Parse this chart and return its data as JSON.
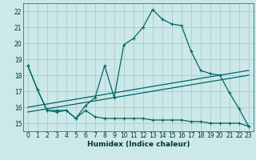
{
  "xlabel": "Humidex (Indice chaleur)",
  "background_color": "#cce8e8",
  "grid_color": "#aacccc",
  "line_color": "#006666",
  "xlim": [
    -0.5,
    23.5
  ],
  "ylim": [
    14.5,
    22.5
  ],
  "xticks": [
    0,
    1,
    2,
    3,
    4,
    5,
    6,
    7,
    8,
    9,
    10,
    11,
    12,
    13,
    14,
    15,
    16,
    17,
    18,
    19,
    20,
    21,
    22,
    23
  ],
  "yticks": [
    15,
    16,
    17,
    18,
    19,
    20,
    21,
    22
  ],
  "line1_x": [
    0,
    1,
    2,
    3,
    4,
    5,
    6,
    7,
    8,
    9,
    10,
    11,
    12,
    13,
    14,
    15,
    16,
    17,
    18,
    19,
    20,
    21,
    22,
    23
  ],
  "line1_y": [
    18.6,
    17.1,
    15.8,
    15.8,
    15.8,
    15.3,
    16.1,
    16.6,
    18.6,
    16.6,
    19.9,
    20.3,
    21.0,
    22.1,
    21.5,
    21.2,
    21.1,
    19.5,
    18.3,
    18.1,
    18.0,
    16.9,
    15.9,
    14.8
  ],
  "line2_x": [
    0,
    1,
    2,
    3,
    4,
    5,
    6,
    7,
    8,
    9,
    10,
    11,
    12,
    13,
    14,
    15,
    16,
    17,
    18,
    19,
    20,
    21,
    22,
    23
  ],
  "line2_y": [
    18.6,
    17.1,
    15.8,
    15.7,
    15.8,
    15.3,
    15.8,
    15.4,
    15.3,
    15.3,
    15.3,
    15.3,
    15.3,
    15.2,
    15.2,
    15.2,
    15.2,
    15.1,
    15.1,
    15.0,
    15.0,
    15.0,
    15.0,
    14.8
  ],
  "line3_x": [
    0,
    23
  ],
  "line3_y": [
    16.0,
    18.3
  ],
  "line4_x": [
    0,
    23
  ],
  "line4_y": [
    15.7,
    18.0
  ]
}
